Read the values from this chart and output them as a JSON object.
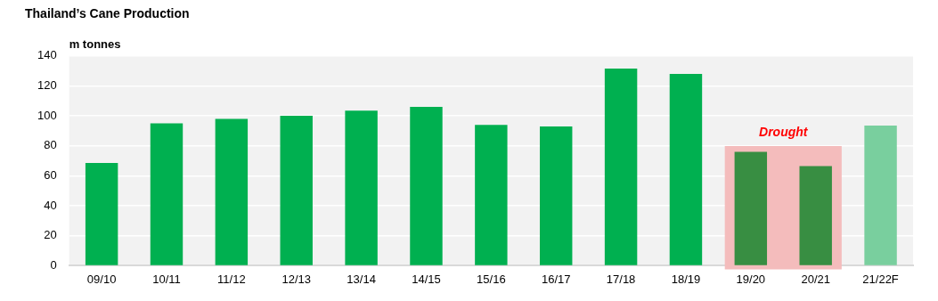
{
  "chart_data": {
    "type": "bar",
    "title": "Thailand’s Cane Production",
    "ylabel": "m tonnes",
    "categories": [
      "09/10",
      "10/11",
      "11/12",
      "12/13",
      "13/14",
      "14/15",
      "15/16",
      "16/17",
      "17/18",
      "18/19",
      "19/20",
      "20/21",
      "21/22F"
    ],
    "values": [
      68.5,
      95,
      98,
      100,
      103.5,
      106,
      94,
      93,
      131.5,
      128,
      76,
      66.5,
      93.5
    ],
    "colors": [
      "#00b050",
      "#00b050",
      "#00b050",
      "#00b050",
      "#00b050",
      "#00b050",
      "#00b050",
      "#00b050",
      "#00b050",
      "#00b050",
      "#388e42",
      "#388e42",
      "#79cf9e"
    ],
    "ylim": [
      0,
      140
    ],
    "yticks": [
      0,
      20,
      40,
      60,
      80,
      100,
      120,
      140
    ],
    "grid": "y",
    "legend": false,
    "bands": [
      {
        "axis": "x",
        "from": "19/20",
        "to": "20/21",
        "label": "Drought",
        "color": "#f4bcbc"
      }
    ]
  }
}
